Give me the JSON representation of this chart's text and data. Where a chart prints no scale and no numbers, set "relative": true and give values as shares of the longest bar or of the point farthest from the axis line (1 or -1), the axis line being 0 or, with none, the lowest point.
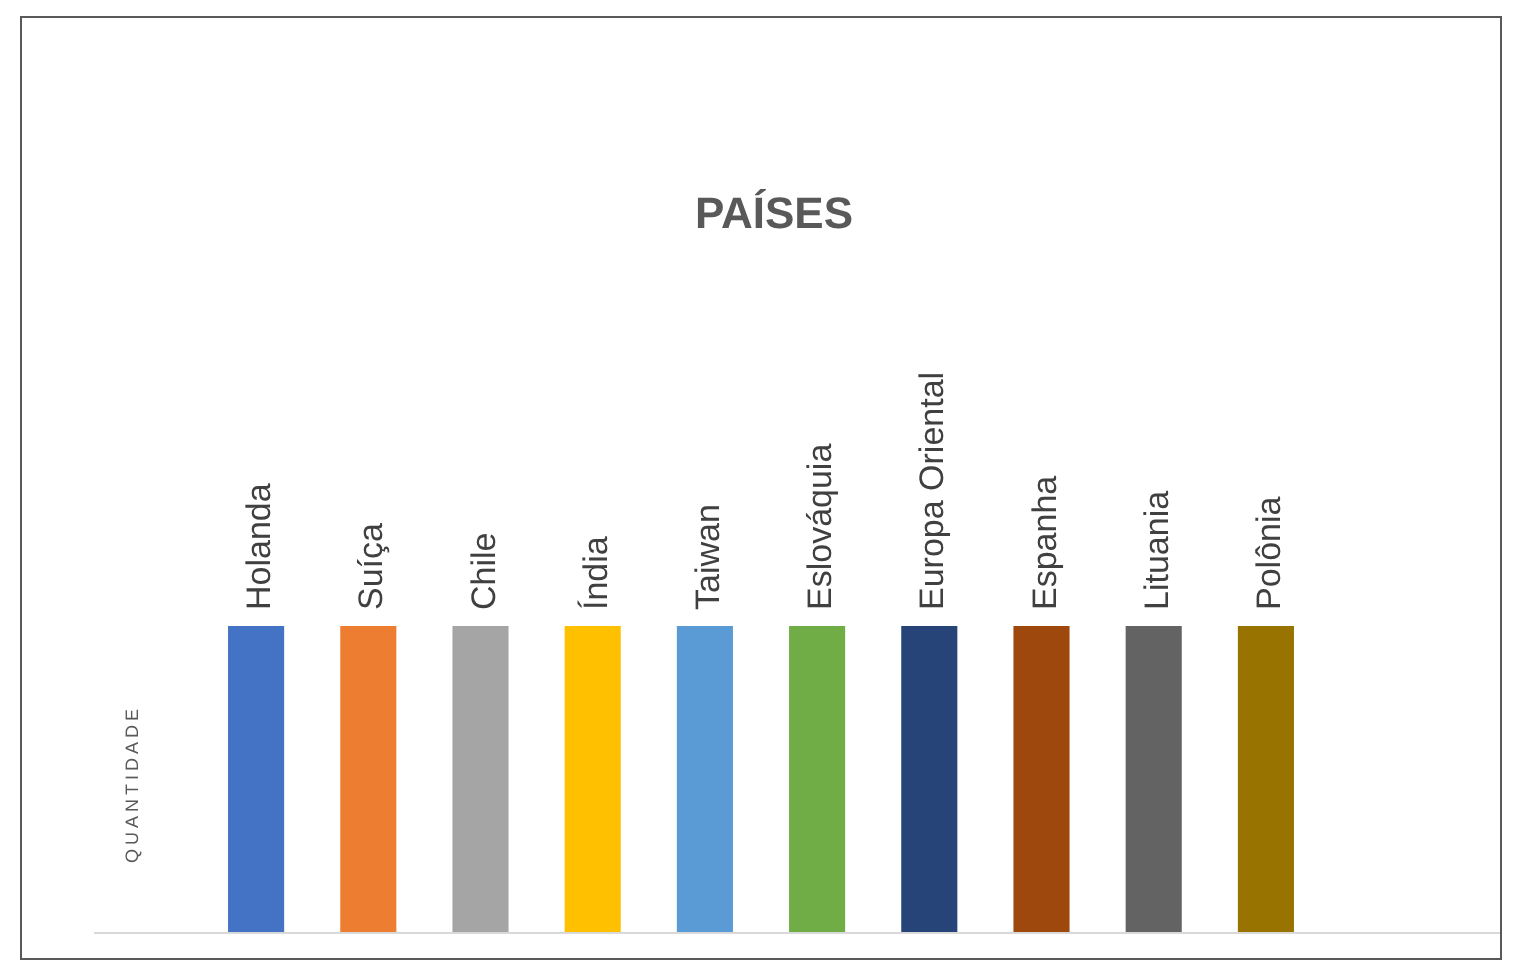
{
  "chart_data": {
    "type": "bar",
    "title": "PAÍSES",
    "ylabel": "QUANTIDADE",
    "relative": true,
    "categories": [
      "Holanda",
      "Suíça",
      "Chile",
      "Índia",
      "Taiwan",
      "Eslováquia",
      "Europa Oriental",
      "Espanha",
      "Lituania",
      "Polônia"
    ],
    "values": [
      1,
      1,
      1,
      1,
      1,
      1,
      1,
      1,
      1,
      1
    ],
    "colors": [
      "#4472c4",
      "#ed7d31",
      "#a5a5a5",
      "#ffc000",
      "#5b9bd5",
      "#70ad47",
      "#264478",
      "#9e480e",
      "#636363",
      "#997300"
    ]
  }
}
